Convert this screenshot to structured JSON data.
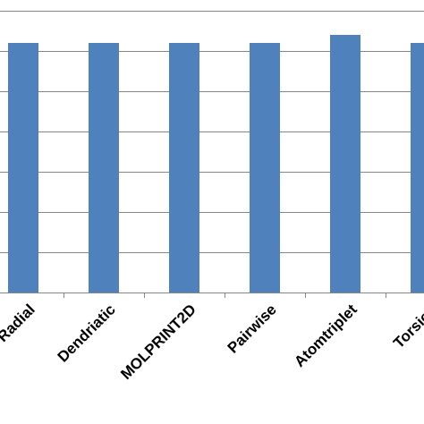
{
  "chart_data": {
    "type": "bar",
    "categories": [
      "Radial",
      "Dendriatic",
      "MOLPRINT2D",
      "Pairwise",
      "Atomtriplet",
      "Torsion"
    ],
    "series": [
      {
        "values": [
          0.62,
          0.62,
          0.62,
          0.62,
          0.64,
          0.62
        ]
      }
    ],
    "ylim": [
      0,
      0.72
    ],
    "ytick_step": 0.1,
    "grid": true,
    "legend": "none",
    "bar_color": "#4F81BD",
    "grid_color": "#868686",
    "axis_color": "#868686",
    "text_color": "#000000"
  }
}
